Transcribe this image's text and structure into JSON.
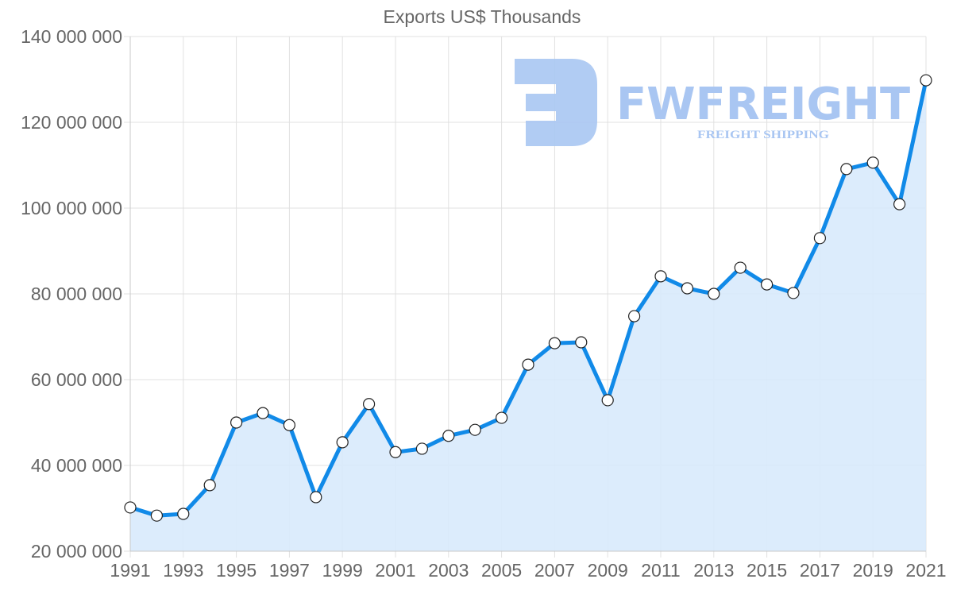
{
  "chart_data": {
    "type": "area",
    "title": "Exports US$ Thousands",
    "xlabel": "",
    "ylabel": "",
    "ylim": [
      20000000,
      140000000
    ],
    "yticks": [
      "20 000 000",
      "40 000 000",
      "60 000 000",
      "80 000 000",
      "100 000 000",
      "120 000 000",
      "140 000 000"
    ],
    "ytick_values": [
      20000000,
      40000000,
      60000000,
      80000000,
      100000000,
      120000000,
      140000000
    ],
    "xticks": [
      "1991",
      "1993",
      "1995",
      "1997",
      "1999",
      "2001",
      "2003",
      "2005",
      "2007",
      "2009",
      "2011",
      "2013",
      "2015",
      "2017",
      "2019",
      "2021"
    ],
    "grid": true,
    "legend": "none",
    "x": [
      1991,
      1992,
      1993,
      1994,
      1995,
      1996,
      1997,
      1998,
      1999,
      2000,
      2001,
      2002,
      2003,
      2004,
      2005,
      2006,
      2007,
      2008,
      2009,
      2010,
      2011,
      2012,
      2013,
      2014,
      2015,
      2016,
      2017,
      2018,
      2019,
      2020,
      2021
    ],
    "series": [
      {
        "name": "Exports US$ Thousands",
        "color": "#118ae8",
        "fill": "#d8eafc",
        "values": [
          30200000,
          28300000,
          28700000,
          35400000,
          50000000,
          52200000,
          49400000,
          32600000,
          45400000,
          54300000,
          43100000,
          43900000,
          46900000,
          48300000,
          51100000,
          63500000,
          68500000,
          68700000,
          55200000,
          74800000,
          84100000,
          81300000,
          80000000,
          86100000,
          82200000,
          80200000,
          93000000,
          109100000,
          110600000,
          100900000,
          129800000
        ]
      }
    ]
  },
  "watermark": {
    "brand": "FWFREIGHT",
    "tagline": "FREIGHT SHIPPING",
    "color": "#a9c6f2"
  }
}
